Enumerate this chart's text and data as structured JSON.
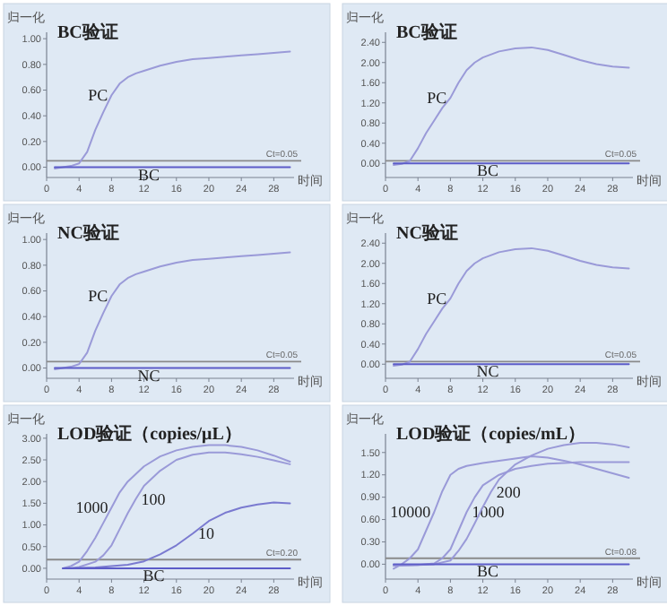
{
  "chart_data": [
    {
      "type": "line",
      "title": "BC验证",
      "xlabel": "时间",
      "ylabel": "归一化",
      "grid": false,
      "legend": false,
      "marker": "none",
      "line_style": "solid",
      "xlim": [
        0,
        30.5
      ],
      "xticks": [
        0,
        4,
        8,
        12,
        16,
        20,
        24,
        28
      ],
      "ylim": [
        -0.08,
        1.05
      ],
      "yticks": [
        {
          "value": 0,
          "label": "0.00"
        },
        {
          "value": 0.2,
          "label": "0.20"
        },
        {
          "value": 0.4,
          "label": "0.40"
        },
        {
          "value": 0.6,
          "label": "0.60"
        },
        {
          "value": 0.8,
          "label": "0.80"
        },
        {
          "value": 1.0,
          "label": "1.00"
        }
      ],
      "ref_lines": [
        {
          "axis": "y",
          "value": 0.05,
          "label": "Ct=0.05",
          "color": "#8a8a8a"
        }
      ],
      "series": [
        {
          "name": "PC",
          "color": "#9a9ad8",
          "x": [
            1,
            2,
            3,
            4,
            5,
            6,
            7,
            8,
            9,
            10,
            11,
            12,
            14,
            16,
            18,
            20,
            22,
            24,
            26,
            28,
            30
          ],
          "values": [
            -0.01,
            0.0,
            0.01,
            0.03,
            0.12,
            0.29,
            0.43,
            0.56,
            0.65,
            0.7,
            0.73,
            0.75,
            0.79,
            0.82,
            0.84,
            0.85,
            0.86,
            0.87,
            0.88,
            0.89,
            0.9
          ]
        },
        {
          "name": "BC",
          "color": "#5c5cc8",
          "x": [
            1,
            10,
            20,
            30
          ],
          "values": [
            0.0,
            0.0,
            0.0,
            0.0
          ]
        }
      ]
    },
    {
      "type": "line",
      "title": "BC验证",
      "xlabel": "时间",
      "ylabel": "归一化",
      "grid": false,
      "legend": false,
      "marker": "none",
      "line_style": "solid",
      "xlim": [
        0,
        30.5
      ],
      "xticks": [
        0,
        4,
        8,
        12,
        16,
        20,
        24,
        28
      ],
      "ylim": [
        -0.28,
        2.6
      ],
      "yticks": [
        {
          "value": 0,
          "label": "0.00"
        },
        {
          "value": 0.4,
          "label": "0.40"
        },
        {
          "value": 0.8,
          "label": "0.80"
        },
        {
          "value": 1.2,
          "label": "1.20"
        },
        {
          "value": 1.6,
          "label": "1.60"
        },
        {
          "value": 2.0,
          "label": "2.00"
        },
        {
          "value": 2.4,
          "label": "2.40"
        }
      ],
      "ref_lines": [
        {
          "axis": "y",
          "value": 0.05,
          "label": "Ct=0.05",
          "color": "#8a8a8a"
        }
      ],
      "series": [
        {
          "name": "PC",
          "color": "#9a9ad8",
          "x": [
            1,
            2,
            3,
            4,
            5,
            6,
            7,
            8,
            9,
            10,
            11,
            12,
            14,
            16,
            18,
            20,
            22,
            24,
            26,
            28,
            30
          ],
          "values": [
            -0.03,
            -0.01,
            0.05,
            0.3,
            0.6,
            0.85,
            1.1,
            1.3,
            1.6,
            1.85,
            2.0,
            2.1,
            2.22,
            2.28,
            2.3,
            2.25,
            2.15,
            2.05,
            1.97,
            1.92,
            1.9
          ]
        },
        {
          "name": "BC",
          "color": "#5c5cc8",
          "x": [
            1,
            10,
            20,
            30
          ],
          "values": [
            0.0,
            0.0,
            0.0,
            0.0
          ]
        }
      ]
    },
    {
      "type": "line",
      "title": "NC验证",
      "xlabel": "时间",
      "ylabel": "归一化",
      "grid": false,
      "legend": false,
      "marker": "none",
      "line_style": "solid",
      "xlim": [
        0,
        30.5
      ],
      "xticks": [
        0,
        4,
        8,
        12,
        16,
        20,
        24,
        28
      ],
      "ylim": [
        -0.08,
        1.05
      ],
      "yticks": [
        {
          "value": 0,
          "label": "0.00"
        },
        {
          "value": 0.2,
          "label": "0.20"
        },
        {
          "value": 0.4,
          "label": "0.40"
        },
        {
          "value": 0.6,
          "label": "0.60"
        },
        {
          "value": 0.8,
          "label": "0.80"
        },
        {
          "value": 1.0,
          "label": "1.00"
        }
      ],
      "ref_lines": [
        {
          "axis": "y",
          "value": 0.05,
          "label": "Ct=0.05",
          "color": "#8a8a8a"
        }
      ],
      "series": [
        {
          "name": "PC",
          "color": "#9a9ad8",
          "x": [
            1,
            2,
            3,
            4,
            5,
            6,
            7,
            8,
            9,
            10,
            11,
            12,
            14,
            16,
            18,
            20,
            22,
            24,
            26,
            28,
            30
          ],
          "values": [
            -0.01,
            0.0,
            0.01,
            0.03,
            0.12,
            0.29,
            0.43,
            0.56,
            0.65,
            0.7,
            0.73,
            0.75,
            0.79,
            0.82,
            0.84,
            0.85,
            0.86,
            0.87,
            0.88,
            0.89,
            0.9
          ]
        },
        {
          "name": "NC",
          "color": "#5c5cc8",
          "x": [
            1,
            10,
            20,
            30
          ],
          "values": [
            0.0,
            0.0,
            0.0,
            0.0
          ]
        }
      ]
    },
    {
      "type": "line",
      "title": "NC验证",
      "xlabel": "时间",
      "ylabel": "归一化",
      "grid": false,
      "legend": false,
      "marker": "none",
      "line_style": "solid",
      "xlim": [
        0,
        30.5
      ],
      "xticks": [
        0,
        4,
        8,
        12,
        16,
        20,
        24,
        28
      ],
      "ylim": [
        -0.28,
        2.6
      ],
      "yticks": [
        {
          "value": 0,
          "label": "0.00"
        },
        {
          "value": 0.4,
          "label": "0.40"
        },
        {
          "value": 0.8,
          "label": "0.80"
        },
        {
          "value": 1.2,
          "label": "1.20"
        },
        {
          "value": 1.6,
          "label": "1.60"
        },
        {
          "value": 2.0,
          "label": "2.00"
        },
        {
          "value": 2.4,
          "label": "2.40"
        }
      ],
      "ref_lines": [
        {
          "axis": "y",
          "value": 0.05,
          "label": "Ct=0.05",
          "color": "#8a8a8a"
        }
      ],
      "series": [
        {
          "name": "PC",
          "color": "#9a9ad8",
          "x": [
            1,
            2,
            3,
            4,
            5,
            6,
            7,
            8,
            9,
            10,
            11,
            12,
            14,
            16,
            18,
            20,
            22,
            24,
            26,
            28,
            30
          ],
          "values": [
            -0.03,
            -0.01,
            0.05,
            0.3,
            0.6,
            0.85,
            1.1,
            1.3,
            1.6,
            1.85,
            2.0,
            2.1,
            2.22,
            2.28,
            2.3,
            2.25,
            2.15,
            2.05,
            1.97,
            1.92,
            1.9
          ]
        },
        {
          "name": "NC",
          "color": "#5c5cc8",
          "x": [
            1,
            10,
            20,
            30
          ],
          "values": [
            0.0,
            0.0,
            0.0,
            0.0
          ]
        }
      ]
    },
    {
      "type": "line",
      "title": "LOD验证（copies/μL）",
      "xlabel": "时间",
      "ylabel": "归一化",
      "grid": false,
      "legend": false,
      "marker": "none",
      "line_style": "solid",
      "xlim": [
        0,
        30.5
      ],
      "xticks": [
        0,
        4,
        8,
        12,
        16,
        20,
        24,
        28
      ],
      "ylim": [
        -0.25,
        3.1
      ],
      "yticks": [
        {
          "value": 0,
          "label": "0.00"
        },
        {
          "value": 0.5,
          "label": "0.50"
        },
        {
          "value": 1.0,
          "label": "1.00"
        },
        {
          "value": 1.5,
          "label": "1.50"
        },
        {
          "value": 2.0,
          "label": "2.00"
        },
        {
          "value": 2.5,
          "label": "2.50"
        },
        {
          "value": 3.0,
          "label": "3.00"
        }
      ],
      "ref_lines": [
        {
          "axis": "y",
          "value": 0.2,
          "label": "Ct=0.20",
          "color": "#8a8a8a"
        }
      ],
      "series": [
        {
          "name": "1000",
          "color": "#9a9ad8",
          "x": [
            2,
            3,
            4,
            5,
            6,
            7,
            8,
            9,
            10,
            12,
            14,
            16,
            18,
            20,
            22,
            24,
            26,
            28,
            30
          ],
          "values": [
            0.0,
            0.05,
            0.15,
            0.4,
            0.7,
            1.05,
            1.4,
            1.75,
            2.0,
            2.35,
            2.58,
            2.72,
            2.8,
            2.84,
            2.84,
            2.8,
            2.72,
            2.6,
            2.46
          ]
        },
        {
          "name": "100",
          "color": "#9a9ad8",
          "x": [
            3,
            4,
            6,
            7,
            8,
            9,
            10,
            11,
            12,
            14,
            16,
            18,
            20,
            22,
            24,
            26,
            28,
            30
          ],
          "values": [
            0.0,
            0.03,
            0.15,
            0.3,
            0.53,
            0.9,
            1.27,
            1.6,
            1.9,
            2.25,
            2.5,
            2.62,
            2.67,
            2.67,
            2.63,
            2.57,
            2.49,
            2.4
          ]
        },
        {
          "name": "10",
          "color": "#7a7ad0",
          "x": [
            2,
            6,
            10,
            12,
            14,
            16,
            18,
            20,
            22,
            24,
            26,
            28,
            30
          ],
          "values": [
            0.0,
            0.02,
            0.08,
            0.16,
            0.32,
            0.53,
            0.8,
            1.09,
            1.28,
            1.4,
            1.47,
            1.52,
            1.5
          ]
        },
        {
          "name": "BC",
          "color": "#5c5cc8",
          "x": [
            2,
            10,
            20,
            30
          ],
          "values": [
            0.0,
            0.0,
            0.0,
            0.0
          ]
        }
      ]
    },
    {
      "type": "line",
      "title": "LOD验证（copies/mL）",
      "xlabel": "时间",
      "ylabel": "归一化",
      "grid": false,
      "legend": false,
      "marker": "none",
      "line_style": "solid",
      "xlim": [
        0,
        30.5
      ],
      "xticks": [
        0,
        4,
        8,
        12,
        16,
        20,
        24,
        28
      ],
      "ylim": [
        -0.2,
        1.75
      ],
      "yticks": [
        {
          "value": 0,
          "label": "0.00"
        },
        {
          "value": 0.3,
          "label": "0.30"
        },
        {
          "value": 0.6,
          "label": "0.60"
        },
        {
          "value": 0.9,
          "label": "0.90"
        },
        {
          "value": 1.2,
          "label": "1.20"
        },
        {
          "value": 1.5,
          "label": "1.50"
        }
      ],
      "ref_lines": [
        {
          "axis": "y",
          "value": 0.08,
          "label": "Ct=0.08",
          "color": "#8a8a8a"
        }
      ],
      "series": [
        {
          "name": "10000",
          "color": "#9a9ad8",
          "x": [
            1,
            2,
            3,
            4,
            5,
            6,
            7,
            8,
            9,
            10,
            12,
            14,
            16,
            18,
            20,
            22,
            24,
            26,
            28,
            30
          ],
          "values": [
            -0.06,
            0.0,
            0.08,
            0.2,
            0.45,
            0.7,
            0.98,
            1.2,
            1.28,
            1.32,
            1.36,
            1.39,
            1.42,
            1.45,
            1.43,
            1.39,
            1.34,
            1.28,
            1.22,
            1.16
          ]
        },
        {
          "name": "1000",
          "color": "#9a9ad8",
          "x": [
            1,
            4,
            6,
            7,
            8,
            9,
            10,
            11,
            12,
            14,
            16,
            18,
            20,
            22,
            24,
            26,
            28,
            30
          ],
          "values": [
            -0.02,
            -0.01,
            0.01,
            0.08,
            0.2,
            0.45,
            0.7,
            0.9,
            1.06,
            1.2,
            1.28,
            1.32,
            1.35,
            1.36,
            1.37,
            1.37,
            1.37,
            1.37
          ]
        },
        {
          "name": "200",
          "color": "#9a9ad8",
          "x": [
            1,
            4,
            6,
            8,
            9,
            10,
            11,
            12,
            13,
            14,
            16,
            18,
            20,
            22,
            24,
            26,
            28,
            30
          ],
          "values": [
            -0.02,
            -0.01,
            0.0,
            0.05,
            0.18,
            0.34,
            0.55,
            0.77,
            0.97,
            1.14,
            1.34,
            1.46,
            1.55,
            1.6,
            1.63,
            1.63,
            1.61,
            1.57
          ]
        },
        {
          "name": "BC",
          "color": "#5c5cc8",
          "x": [
            1,
            10,
            20,
            30
          ],
          "values": [
            0.0,
            0.0,
            0.0,
            0.0
          ]
        }
      ]
    }
  ]
}
